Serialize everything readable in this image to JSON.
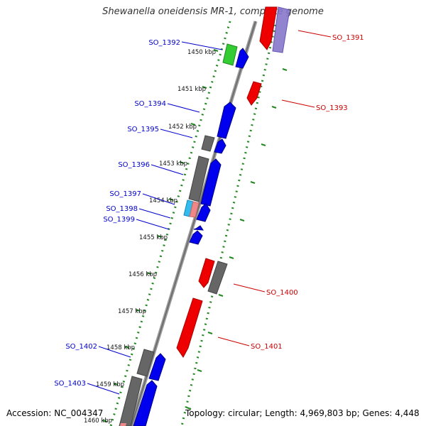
{
  "title": "Shewanella oneidensis MR-1, complete genome",
  "accession": "Accession: NC_004347",
  "topology": "Topology: circular; Length: 4,969,803 bp; Genes: 4,448",
  "colors": {
    "backbone": "#888888",
    "forward": "#0000ee",
    "reverse": "#ee0000",
    "grey": "#666666",
    "green": "#33cc33",
    "cyan": "#33bbee",
    "pink": "#ee8888",
    "lavender": "#8877cc",
    "tick": "#228822",
    "label_forward": "#0000cc",
    "label_reverse": "#cc0000"
  },
  "kbp_ticks": [
    "1450 kbp",
    "1451 kbp",
    "1452 kbp",
    "1453 kbp",
    "1454 kbp",
    "1455 kbp",
    "1456 kbp",
    "1457 kbp",
    "1458 kbp",
    "1459 kbp",
    "1460 kbp"
  ],
  "gene_labels": {
    "forward": [
      "SO_1392",
      "SO_1394",
      "SO_1395",
      "SO_1396",
      "SO_1397",
      "SO_1398",
      "SO_1399",
      "SO_1402",
      "SO_1403"
    ],
    "reverse": [
      "SO_1391",
      "SO_1393",
      "SO_1400",
      "SO_1401"
    ]
  }
}
